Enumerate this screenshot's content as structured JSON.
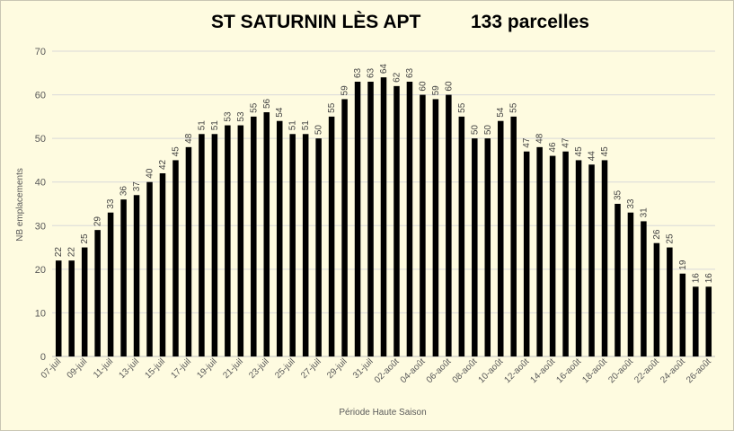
{
  "title_left": "ST SATURNIN LÈS APT",
  "title_right": "133 parcelles",
  "chart_data": {
    "type": "bar",
    "xlabel": "Période Haute Saison",
    "ylabel": "NB emplacements",
    "ylim": [
      0,
      70
    ],
    "yticks": [
      0,
      10,
      20,
      30,
      40,
      50,
      60,
      70
    ],
    "grid": true,
    "bar_color": "#000000",
    "background": "#fefbe0",
    "categories": [
      "07-juil",
      "08-juil",
      "09-juil",
      "10-juil",
      "11-juil",
      "12-juil",
      "13-juil",
      "14-juil",
      "15-juil",
      "16-juil",
      "17-juil",
      "18-juil",
      "19-juil",
      "20-juil",
      "21-juil",
      "22-juil",
      "23-juil",
      "24-juil",
      "25-juil",
      "26-juil",
      "27-juil",
      "28-juil",
      "29-juil",
      "30-juil",
      "31-juil",
      "01-août",
      "02-août",
      "03-août",
      "04-août",
      "05-août",
      "06-août",
      "07-août",
      "08-août",
      "09-août",
      "10-août",
      "11-août",
      "12-août",
      "13-août",
      "14-août",
      "15-août",
      "16-août",
      "17-août",
      "18-août",
      "19-août",
      "20-août",
      "21-août",
      "22-août",
      "23-août",
      "24-août",
      "25-août",
      "26-août"
    ],
    "tick_labels": [
      "07-juil",
      "09-juil",
      "11-juil",
      "13-juil",
      "15-juil",
      "17-juil",
      "19-juil",
      "21-juil",
      "23-juil",
      "25-juil",
      "27-juil",
      "29-juil",
      "31-juil",
      "02-août",
      "04-août",
      "06-août",
      "08-août",
      "10-août",
      "12-août",
      "14-août",
      "16-août",
      "18-août",
      "20-août",
      "22-août",
      "24-août",
      "26-août"
    ],
    "values": [
      22,
      22,
      25,
      29,
      33,
      36,
      37,
      40,
      42,
      45,
      48,
      51,
      51,
      53,
      53,
      55,
      56,
      54,
      51,
      51,
      50,
      55,
      59,
      63,
      63,
      64,
      62,
      63,
      60,
      59,
      60,
      55,
      50,
      50,
      54,
      55,
      47,
      48,
      46,
      47,
      45,
      44,
      45,
      35,
      33,
      31,
      26,
      25,
      19,
      16,
      16
    ]
  }
}
